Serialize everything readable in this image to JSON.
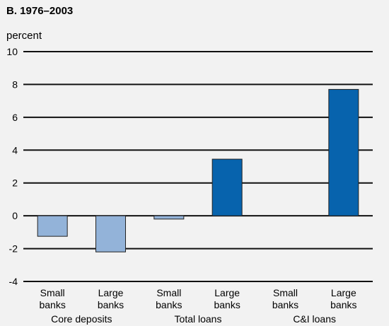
{
  "chart_data": {
    "type": "bar",
    "title": "B. 1976–2003",
    "ylabel": "percent",
    "ylim": [
      -4,
      10
    ],
    "yticks": [
      10,
      8,
      6,
      4,
      2,
      0,
      -2,
      -4
    ],
    "ytick_labels": [
      "10",
      "8",
      "6",
      "4",
      "2",
      "0",
      "-2",
      "-4"
    ],
    "grid": true,
    "categories": [
      {
        "line1": "Small",
        "line2": "banks"
      },
      {
        "line1": "Large",
        "line2": "banks"
      },
      {
        "line1": "Small",
        "line2": "banks"
      },
      {
        "line1": "Large",
        "line2": "banks"
      },
      {
        "line1": "Small",
        "line2": "banks"
      },
      {
        "line1": "Large",
        "line2": "banks"
      }
    ],
    "groups": [
      "Core deposits",
      "Total loans",
      "C&I loans"
    ],
    "values": [
      -1.25,
      -2.2,
      -0.2,
      3.45,
      0,
      7.7
    ],
    "colors": {
      "negative": "#93b3d9",
      "positive": "#0763ad",
      "outline": "#222222",
      "grid": "#111111",
      "background": "#f2f2f2"
    }
  }
}
